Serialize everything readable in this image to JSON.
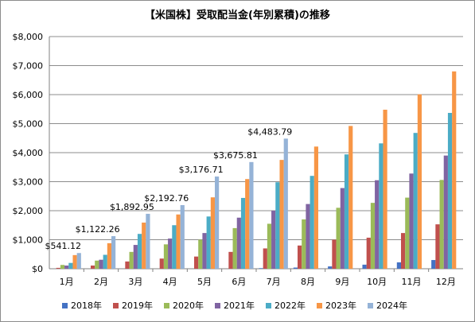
{
  "chart_data": {
    "type": "bar",
    "title": "【米国株】受取配当金(年別累積)の推移",
    "categories": [
      "1月",
      "2月",
      "3月",
      "4月",
      "5月",
      "6月",
      "7月",
      "8月",
      "9月",
      "10月",
      "11月",
      "12月"
    ],
    "ylim": [
      0,
      8000
    ],
    "yticks": [
      "$0",
      "$1,000",
      "$2,000",
      "$3,000",
      "$4,000",
      "$5,000",
      "$6,000",
      "$7,000",
      "$8,000"
    ],
    "grid": true,
    "legend_position": "bottom",
    "series": [
      {
        "name": "2018年",
        "color": "#4472c4",
        "values": [
          0,
          0,
          0,
          0,
          0,
          0,
          20,
          40,
          80,
          140,
          220,
          300
        ]
      },
      {
        "name": "2019年",
        "color": "#c0504d",
        "values": [
          30,
          110,
          250,
          350,
          420,
          580,
          700,
          800,
          1000,
          1070,
          1230,
          1530
        ]
      },
      {
        "name": "2020年",
        "color": "#9bbb59",
        "values": [
          130,
          280,
          580,
          840,
          1000,
          1400,
          1550,
          1700,
          2100,
          2270,
          2450,
          3060
        ]
      },
      {
        "name": "2021年",
        "color": "#8064a2",
        "values": [
          110,
          310,
          820,
          1040,
          1230,
          1760,
          2000,
          2230,
          2780,
          3050,
          3280,
          3900
        ]
      },
      {
        "name": "2022年",
        "color": "#4bacc6",
        "values": [
          200,
          480,
          1200,
          1500,
          1800,
          2440,
          2980,
          3200,
          3940,
          4320,
          4680,
          5370
        ]
      },
      {
        "name": "2023年",
        "color": "#f79646",
        "values": [
          470,
          880,
          1590,
          1870,
          2460,
          3090,
          3750,
          4210,
          4920,
          5480,
          6010,
          6800
        ]
      },
      {
        "name": "2024年",
        "color": "#95b3d7",
        "values": [
          541.12,
          1122.26,
          1892.95,
          2192.76,
          3176.71,
          3675.81,
          4483.79,
          null,
          null,
          null,
          null,
          null
        ]
      }
    ],
    "data_labels": {
      "series": "2024年",
      "labels": [
        "$541.12",
        "$1,122.26",
        "$1,892.95",
        "$2,192.76",
        "$3,176.71",
        "$3,675.81",
        "$4,483.79"
      ]
    }
  }
}
